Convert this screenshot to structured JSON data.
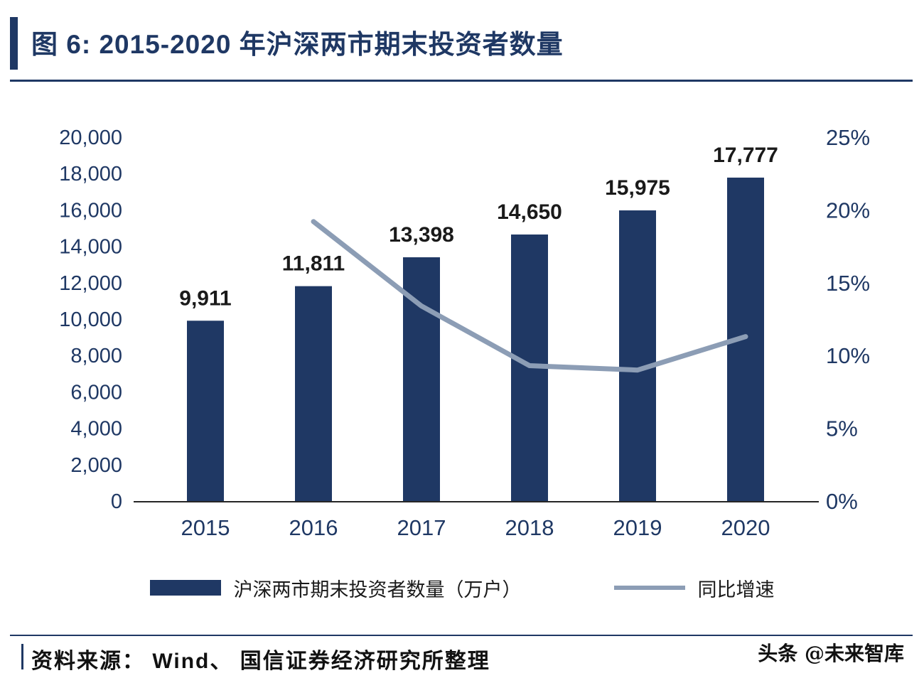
{
  "header": {
    "title": "图 6:  2015-2020 年沪深两市期末投资者数量"
  },
  "chart_data": {
    "type": "combo",
    "categories": [
      "2015",
      "2016",
      "2017",
      "2018",
      "2019",
      "2020"
    ],
    "series": [
      {
        "name": "沪深两市期末投资者数量（万户）",
        "type": "bar",
        "axis": "left",
        "color": "#1F3864",
        "values": [
          9911,
          11811,
          13398,
          14650,
          15975,
          17777
        ],
        "data_labels": [
          "9,911",
          "11,811",
          "13,398",
          "14,650",
          "15,975",
          "17,777"
        ]
      },
      {
        "name": "同比增速",
        "type": "line",
        "axis": "right",
        "color": "#8C9DB5",
        "values": [
          null,
          19.2,
          13.4,
          9.3,
          9.0,
          11.3
        ]
      }
    ],
    "left_axis": {
      "min": 0,
      "max": 20000,
      "step": 2000,
      "tick_labels": [
        "0",
        "2,000",
        "4,000",
        "6,000",
        "8,000",
        "10,000",
        "12,000",
        "14,000",
        "16,000",
        "18,000",
        "20,000"
      ]
    },
    "right_axis": {
      "min": 0,
      "max": 25,
      "step": 5,
      "tick_labels": [
        "0%",
        "5%",
        "10%",
        "15%",
        "20%",
        "25%"
      ]
    },
    "grid": false,
    "legend_position": "bottom"
  },
  "legend": {
    "bar_label": "沪深两市期末投资者数量（万户）",
    "line_label": "同比增速"
  },
  "footer": {
    "source": "资料来源： Wind、 国信证券经济研究所整理"
  },
  "watermark": "头条 @未来智库",
  "colors": {
    "navy": "#1F3864",
    "line": "#8C9DB5",
    "axis_text": "#1F3864",
    "value_label_text": "#1a1a1a"
  }
}
